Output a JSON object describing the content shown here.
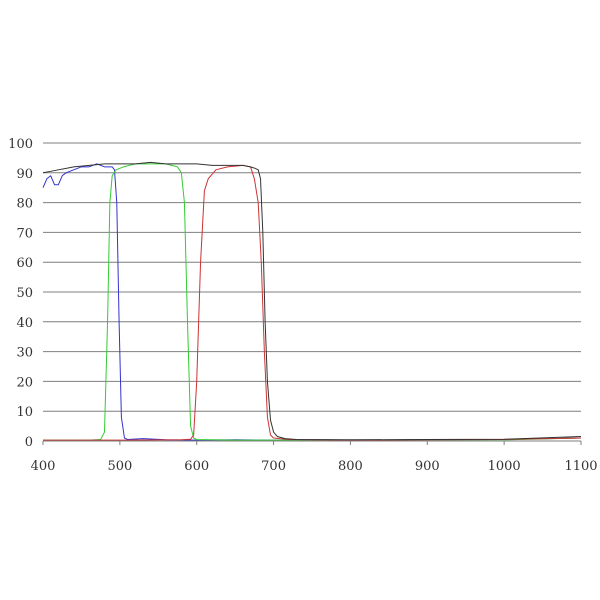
{
  "chart_data": {
    "type": "line",
    "title": "",
    "xlabel": "",
    "ylabel": "",
    "xlim": [
      400,
      1100
    ],
    "ylim": [
      0,
      100
    ],
    "grid": "horizontal",
    "legend": "none",
    "x_ticks": [
      {
        "value": 400,
        "label": "400"
      },
      {
        "value": 500,
        "label": "500"
      },
      {
        "value": 600,
        "label": "600"
      },
      {
        "value": 700,
        "label": "700"
      },
      {
        "value": 800,
        "label": "800"
      },
      {
        "value": 900,
        "label": "900"
      },
      {
        "value": 1000,
        "label": "1000"
      },
      {
        "value": 1100,
        "label": "1100"
      }
    ],
    "y_ticks": [
      {
        "value": 0,
        "label": "0"
      },
      {
        "value": 10,
        "label": "10"
      },
      {
        "value": 20,
        "label": "20"
      },
      {
        "value": 30,
        "label": "30"
      },
      {
        "value": 40,
        "label": "40"
      },
      {
        "value": 50,
        "label": "50"
      },
      {
        "value": 60,
        "label": "60"
      },
      {
        "value": 70,
        "label": "70"
      },
      {
        "value": 80,
        "label": "80"
      },
      {
        "value": 90,
        "label": "90"
      },
      {
        "value": 100,
        "label": "100"
      }
    ],
    "series": [
      {
        "color": "#3333cc",
        "points": [
          [
            400,
            85
          ],
          [
            405,
            88
          ],
          [
            410,
            89
          ],
          [
            415,
            86
          ],
          [
            420,
            86
          ],
          [
            425,
            89
          ],
          [
            430,
            90
          ],
          [
            440,
            91
          ],
          [
            450,
            92
          ],
          [
            460,
            92
          ],
          [
            470,
            93
          ],
          [
            480,
            92
          ],
          [
            485,
            92
          ],
          [
            490,
            92
          ],
          [
            493,
            91
          ],
          [
            496,
            80
          ],
          [
            499,
            40
          ],
          [
            502,
            8
          ],
          [
            506,
            1
          ],
          [
            510,
            0.5
          ],
          [
            530,
            0.8
          ],
          [
            560,
            0.4
          ],
          [
            600,
            0.3
          ],
          [
            650,
            0.4
          ],
          [
            700,
            0.3
          ],
          [
            800,
            0.3
          ],
          [
            900,
            0.4
          ],
          [
            1000,
            0.5
          ],
          [
            1100,
            1
          ]
        ]
      },
      {
        "color": "#33cc33",
        "points": [
          [
            400,
            0.3
          ],
          [
            460,
            0.3
          ],
          [
            475,
            0.5
          ],
          [
            480,
            3
          ],
          [
            484,
            40
          ],
          [
            487,
            80
          ],
          [
            490,
            89
          ],
          [
            495,
            91
          ],
          [
            505,
            92
          ],
          [
            520,
            93
          ],
          [
            540,
            93
          ],
          [
            560,
            93
          ],
          [
            575,
            92
          ],
          [
            580,
            90
          ],
          [
            584,
            80
          ],
          [
            588,
            40
          ],
          [
            592,
            5
          ],
          [
            596,
            1
          ],
          [
            600,
            0.5
          ],
          [
            650,
            0.3
          ],
          [
            700,
            0.3
          ],
          [
            800,
            0.3
          ],
          [
            900,
            0.4
          ],
          [
            1000,
            0.4
          ],
          [
            1100,
            1
          ]
        ]
      },
      {
        "color": "#cc3333",
        "points": [
          [
            400,
            0.3
          ],
          [
            500,
            0.3
          ],
          [
            580,
            0.4
          ],
          [
            592,
            0.6
          ],
          [
            596,
            2
          ],
          [
            600,
            20
          ],
          [
            605,
            60
          ],
          [
            610,
            84
          ],
          [
            615,
            88
          ],
          [
            625,
            91
          ],
          [
            640,
            92
          ],
          [
            660,
            92.5
          ],
          [
            670,
            92
          ],
          [
            675,
            88
          ],
          [
            680,
            80
          ],
          [
            684,
            60
          ],
          [
            688,
            30
          ],
          [
            692,
            8
          ],
          [
            696,
            2
          ],
          [
            700,
            1
          ],
          [
            720,
            0.5
          ],
          [
            800,
            0.3
          ],
          [
            900,
            0.4
          ],
          [
            1000,
            0.5
          ],
          [
            1100,
            1
          ]
        ]
      },
      {
        "color": "#333333",
        "points": [
          [
            400,
            90
          ],
          [
            410,
            90.5
          ],
          [
            420,
            91
          ],
          [
            430,
            91.5
          ],
          [
            440,
            92
          ],
          [
            460,
            92.5
          ],
          [
            480,
            93
          ],
          [
            500,
            93
          ],
          [
            520,
            93
          ],
          [
            540,
            93.5
          ],
          [
            560,
            93
          ],
          [
            580,
            93
          ],
          [
            600,
            93
          ],
          [
            620,
            92.5
          ],
          [
            640,
            92.5
          ],
          [
            660,
            92.5
          ],
          [
            670,
            92
          ],
          [
            676,
            91.5
          ],
          [
            680,
            91
          ],
          [
            683,
            88
          ],
          [
            686,
            70
          ],
          [
            689,
            40
          ],
          [
            692,
            20
          ],
          [
            696,
            7
          ],
          [
            700,
            3
          ],
          [
            705,
            1.5
          ],
          [
            715,
            0.8
          ],
          [
            730,
            0.5
          ],
          [
            800,
            0.4
          ],
          [
            900,
            0.5
          ],
          [
            1000,
            0.6
          ],
          [
            1100,
            1.5
          ]
        ]
      }
    ]
  }
}
